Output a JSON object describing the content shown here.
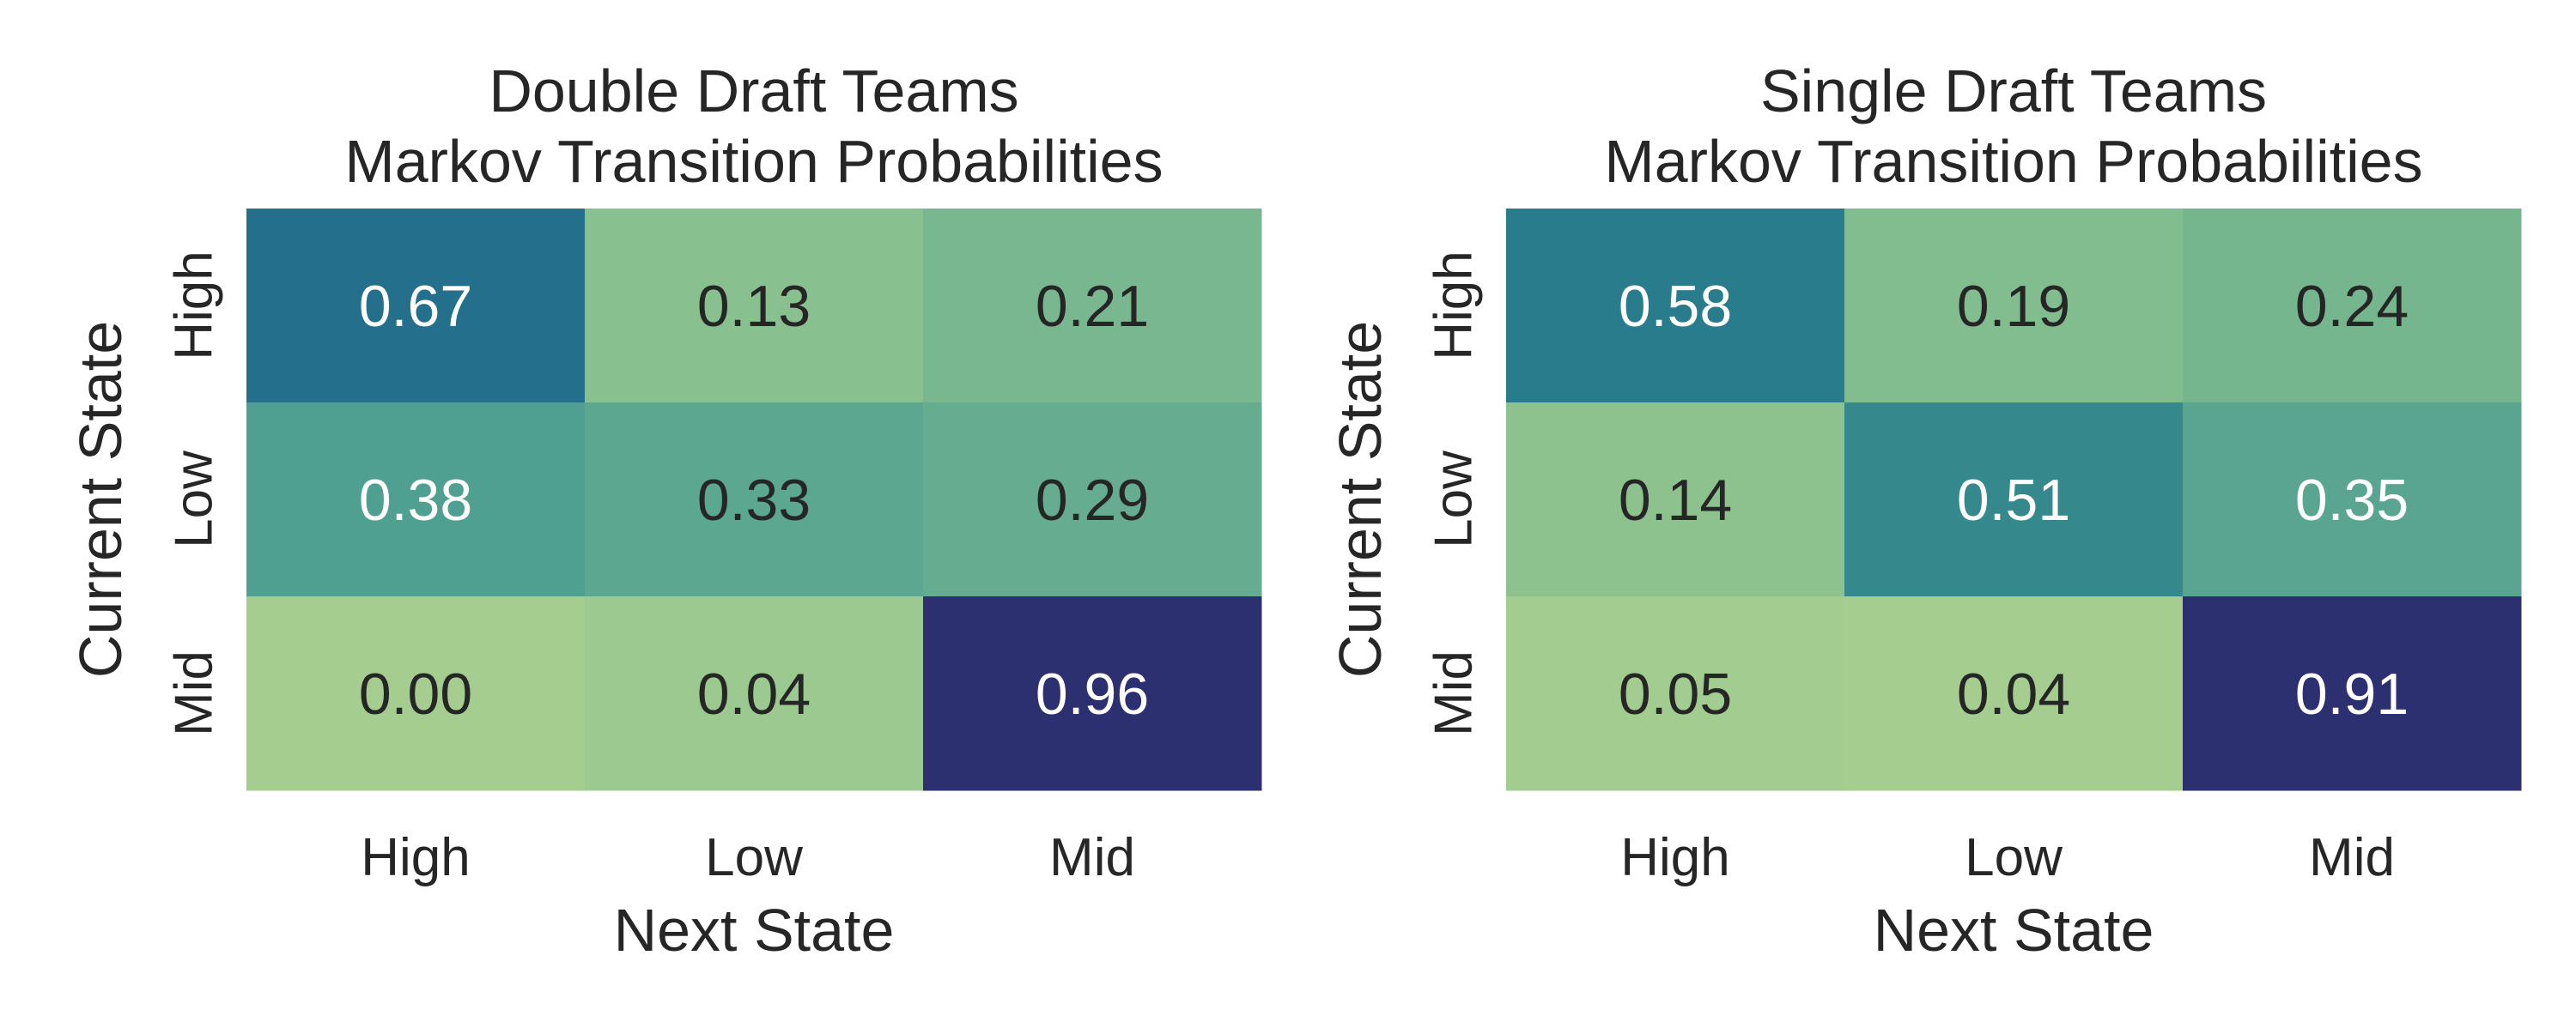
{
  "chart_data": [
    {
      "type": "heatmap",
      "title": "Double Draft Teams\nMarkov Transition Probabilities",
      "xlabel": "Next State",
      "ylabel": "Current State",
      "x_categories": [
        "High",
        "Low",
        "Mid"
      ],
      "y_categories": [
        "High",
        "Low",
        "Mid"
      ],
      "values": [
        [
          0.67,
          0.13,
          0.21
        ],
        [
          0.38,
          0.33,
          0.29
        ],
        [
          0.0,
          0.04,
          0.96
        ]
      ],
      "value_format": "0.00",
      "colormap": "crest",
      "colorbar": false
    },
    {
      "type": "heatmap",
      "title": "Single Draft Teams\nMarkov Transition Probabilities",
      "xlabel": "Next State",
      "ylabel": "Current State",
      "x_categories": [
        "High",
        "Low",
        "Mid"
      ],
      "y_categories": [
        "High",
        "Low",
        "Mid"
      ],
      "values": [
        [
          0.58,
          0.19,
          0.24
        ],
        [
          0.14,
          0.51,
          0.35
        ],
        [
          0.05,
          0.04,
          0.91
        ]
      ],
      "value_format": "0.00",
      "colormap": "crest",
      "colorbar": false
    }
  ],
  "colors": {
    "ramp": [
      "#a5cd90",
      "#7cba8f",
      "#4f9f91",
      "#2a7f8b",
      "#1d5f8a",
      "#2c2f70"
    ],
    "text_dark": "#262626",
    "text_light": "#ffffff"
  }
}
